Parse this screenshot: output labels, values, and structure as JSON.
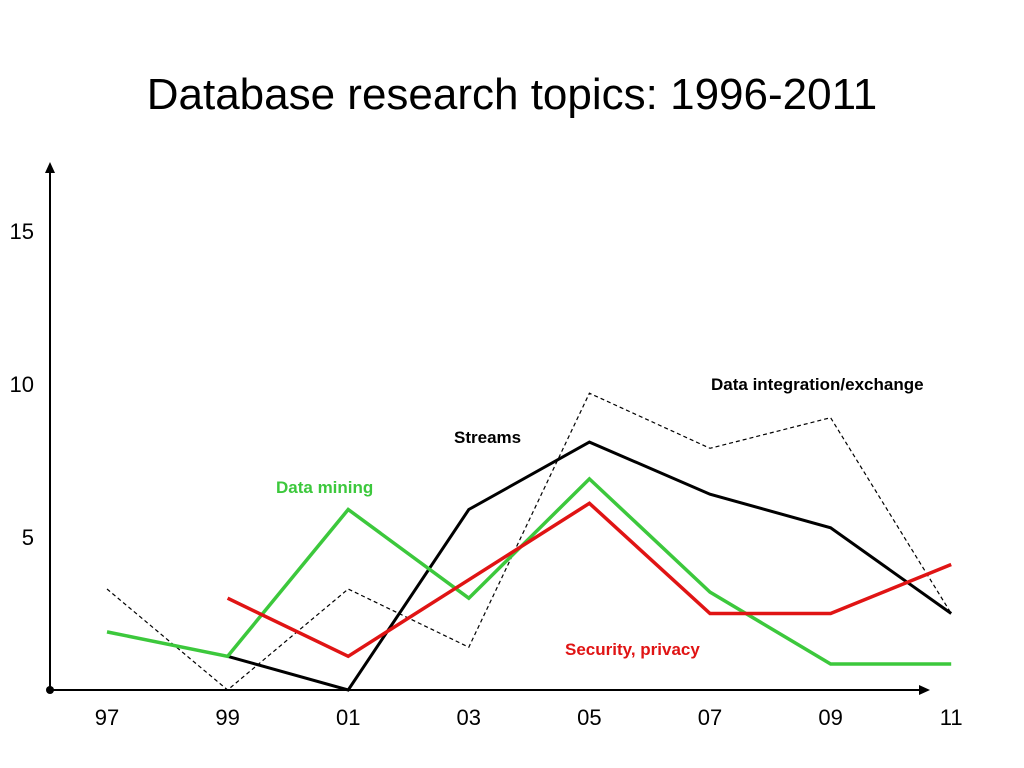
{
  "chart_data": {
    "type": "line",
    "title": "Database research topics: 1996-2011",
    "xlabel": "",
    "ylabel": "",
    "x": [
      1997,
      1999,
      2001,
      2003,
      2005,
      2007,
      2009,
      2011
    ],
    "x_tick_labels": [
      "97",
      "99",
      "01",
      "03",
      "05",
      "07",
      "09",
      "11"
    ],
    "y_ticks": [
      5,
      10,
      15
    ],
    "y_tick_labels": [
      "5",
      "10",
      "15"
    ],
    "xlim": [
      1996,
      2012
    ],
    "ylim": [
      0,
      17
    ],
    "grid": false,
    "legend": "none (series labelled inline)",
    "series": [
      {
        "name": "Data integration/exchange",
        "color": "#000000",
        "style": "dashed",
        "points": [
          [
            1997,
            3.3
          ],
          [
            1999,
            0
          ],
          [
            2001,
            3.3
          ],
          [
            2003,
            1.4
          ],
          [
            2005,
            9.7
          ],
          [
            2007,
            7.9
          ],
          [
            2009,
            8.9
          ],
          [
            2011,
            2.5
          ]
        ]
      },
      {
        "name": "Streams",
        "color": "#000000",
        "style": "solid",
        "points": [
          [
            1999,
            1.1
          ],
          [
            2001,
            0
          ],
          [
            2003,
            5.9
          ],
          [
            2005,
            8.1
          ],
          [
            2007,
            6.4
          ],
          [
            2009,
            5.3
          ],
          [
            2011,
            2.5
          ]
        ]
      },
      {
        "name": "Data mining",
        "color": "#3cc83c",
        "style": "solid",
        "points": [
          [
            1997,
            1.9
          ],
          [
            1999,
            1.1
          ],
          [
            2001,
            5.9
          ],
          [
            2003,
            3.0
          ],
          [
            2005,
            6.9
          ],
          [
            2007,
            3.2
          ],
          [
            2009,
            0.85
          ],
          [
            2011,
            0.85
          ]
        ]
      },
      {
        "name": "Security, privacy",
        "color": "#e01414",
        "style": "solid",
        "points": [
          [
            1999,
            3.0
          ],
          [
            2001,
            1.1
          ],
          [
            2003,
            3.6
          ],
          [
            2005,
            6.1
          ],
          [
            2007,
            2.5
          ],
          [
            2009,
            2.5
          ],
          [
            2011,
            4.1
          ]
        ]
      }
    ]
  }
}
